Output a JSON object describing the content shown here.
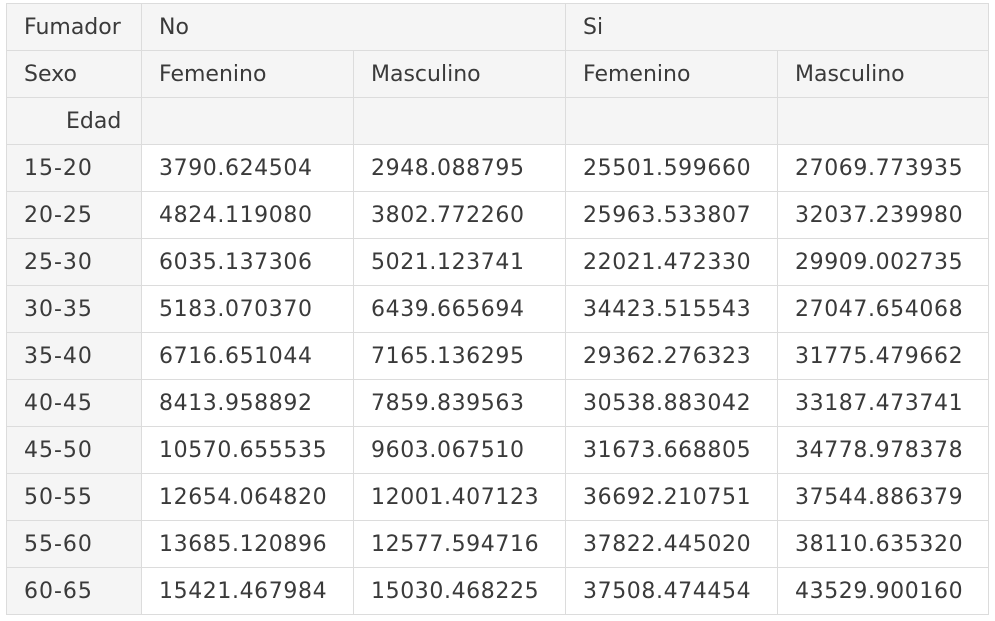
{
  "header": {
    "row1_label": "Fumador",
    "fumador_groups": [
      "No",
      "Si"
    ],
    "row2_label": "Sexo",
    "sexo_labels": [
      "Femenino",
      "Masculino",
      "Femenino",
      "Masculino"
    ],
    "row3_label": "Edad"
  },
  "rows": [
    {
      "edad": "15-20",
      "values": [
        "3790.624504",
        "2948.088795",
        "25501.599660",
        "27069.773935"
      ]
    },
    {
      "edad": "20-25",
      "values": [
        "4824.119080",
        "3802.772260",
        "25963.533807",
        "32037.239980"
      ]
    },
    {
      "edad": "25-30",
      "values": [
        "6035.137306",
        "5021.123741",
        "22021.472330",
        "29909.002735"
      ]
    },
    {
      "edad": "30-35",
      "values": [
        "5183.070370",
        "6439.665694",
        "34423.515543",
        "27047.654068"
      ]
    },
    {
      "edad": "35-40",
      "values": [
        "6716.651044",
        "7165.136295",
        "29362.276323",
        "31775.479662"
      ]
    },
    {
      "edad": "40-45",
      "values": [
        "8413.958892",
        "7859.839563",
        "30538.883042",
        "33187.473741"
      ]
    },
    {
      "edad": "45-50",
      "values": [
        "10570.655535",
        "9603.067510",
        "31673.668805",
        "34778.978378"
      ]
    },
    {
      "edad": "50-55",
      "values": [
        "12654.064820",
        "12001.407123",
        "36692.210751",
        "37544.886379"
      ]
    },
    {
      "edad": "55-60",
      "values": [
        "13685.120896",
        "12577.594716",
        "37822.445020",
        "38110.635320"
      ]
    },
    {
      "edad": "60-65",
      "values": [
        "15421.467984",
        "15030.468225",
        "37508.474454",
        "43529.900160"
      ]
    }
  ]
}
